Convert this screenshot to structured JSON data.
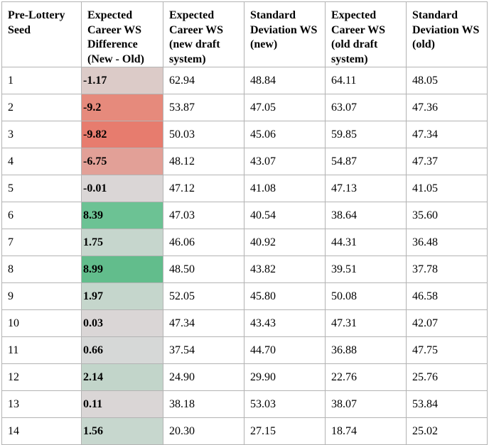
{
  "table": {
    "headers": [
      "Pre-Lottery Seed",
      "Expected Career WS Difference (New - Old)",
      "Expected Career WS (new draft system)",
      "Standard Deviation WS (new)",
      "Expected Career WS (old draft system)",
      "Standard Deviation WS (old)"
    ],
    "rows": [
      {
        "seed": "1",
        "diff": "-1.17",
        "diff_color": "#dccbc8",
        "ews_new": "62.94",
        "sd_new": "48.84",
        "ews_old": "64.11",
        "sd_old": "48.05"
      },
      {
        "seed": "2",
        "diff": "-9.2",
        "diff_color": "#e68a7c",
        "ews_new": "53.87",
        "sd_new": "47.05",
        "ews_old": "63.07",
        "sd_old": "47.36"
      },
      {
        "seed": "3",
        "diff": "-9.82",
        "diff_color": "#e77c6e",
        "ews_new": "50.03",
        "sd_new": "45.06",
        "ews_old": "59.85",
        "sd_old": "47.34"
      },
      {
        "seed": "4",
        "diff": "-6.75",
        "diff_color": "#e2a097",
        "ews_new": "48.12",
        "sd_new": "43.07",
        "ews_old": "54.87",
        "sd_old": "47.37"
      },
      {
        "seed": "5",
        "diff": "-0.01",
        "diff_color": "#dad6d6",
        "ews_new": "47.12",
        "sd_new": "41.08",
        "ews_old": "47.13",
        "sd_old": "41.05"
      },
      {
        "seed": "6",
        "diff": "8.39",
        "diff_color": "#6cc294",
        "ews_new": "47.03",
        "sd_new": "40.54",
        "ews_old": "38.64",
        "sd_old": "35.60"
      },
      {
        "seed": "7",
        "diff": "1.75",
        "diff_color": "#c6d6cd",
        "ews_new": "46.06",
        "sd_new": "40.92",
        "ews_old": "44.31",
        "sd_old": "36.48"
      },
      {
        "seed": "8",
        "diff": "8.99",
        "diff_color": "#62bd8c",
        "ews_new": "48.50",
        "sd_new": "43.82",
        "ews_old": "39.51",
        "sd_old": "37.78"
      },
      {
        "seed": "9",
        "diff": "1.97",
        "diff_color": "#c5d6cc",
        "ews_new": "52.05",
        "sd_new": "45.80",
        "ews_old": "50.08",
        "sd_old": "46.58"
      },
      {
        "seed": "10",
        "diff": "0.03",
        "diff_color": "#dad6d6",
        "ews_new": "47.34",
        "sd_new": "43.43",
        "ews_old": "47.31",
        "sd_old": "42.07"
      },
      {
        "seed": "11",
        "diff": "0.66",
        "diff_color": "#d6d8d7",
        "ews_new": "37.54",
        "sd_new": "44.70",
        "ews_old": "36.88",
        "sd_old": "47.75"
      },
      {
        "seed": "12",
        "diff": "2.14",
        "diff_color": "#c2d5ca",
        "ews_new": "24.90",
        "sd_new": "29.90",
        "ews_old": "22.76",
        "sd_old": "25.76"
      },
      {
        "seed": "13",
        "diff": "0.11",
        "diff_color": "#dad6d6",
        "ews_new": "38.18",
        "sd_new": "53.03",
        "ews_old": "38.07",
        "sd_old": "53.84"
      },
      {
        "seed": "14",
        "diff": "1.56",
        "diff_color": "#c7d7ce",
        "ews_new": "20.30",
        "sd_new": "27.15",
        "ews_old": "18.74",
        "sd_old": "25.02"
      }
    ]
  }
}
